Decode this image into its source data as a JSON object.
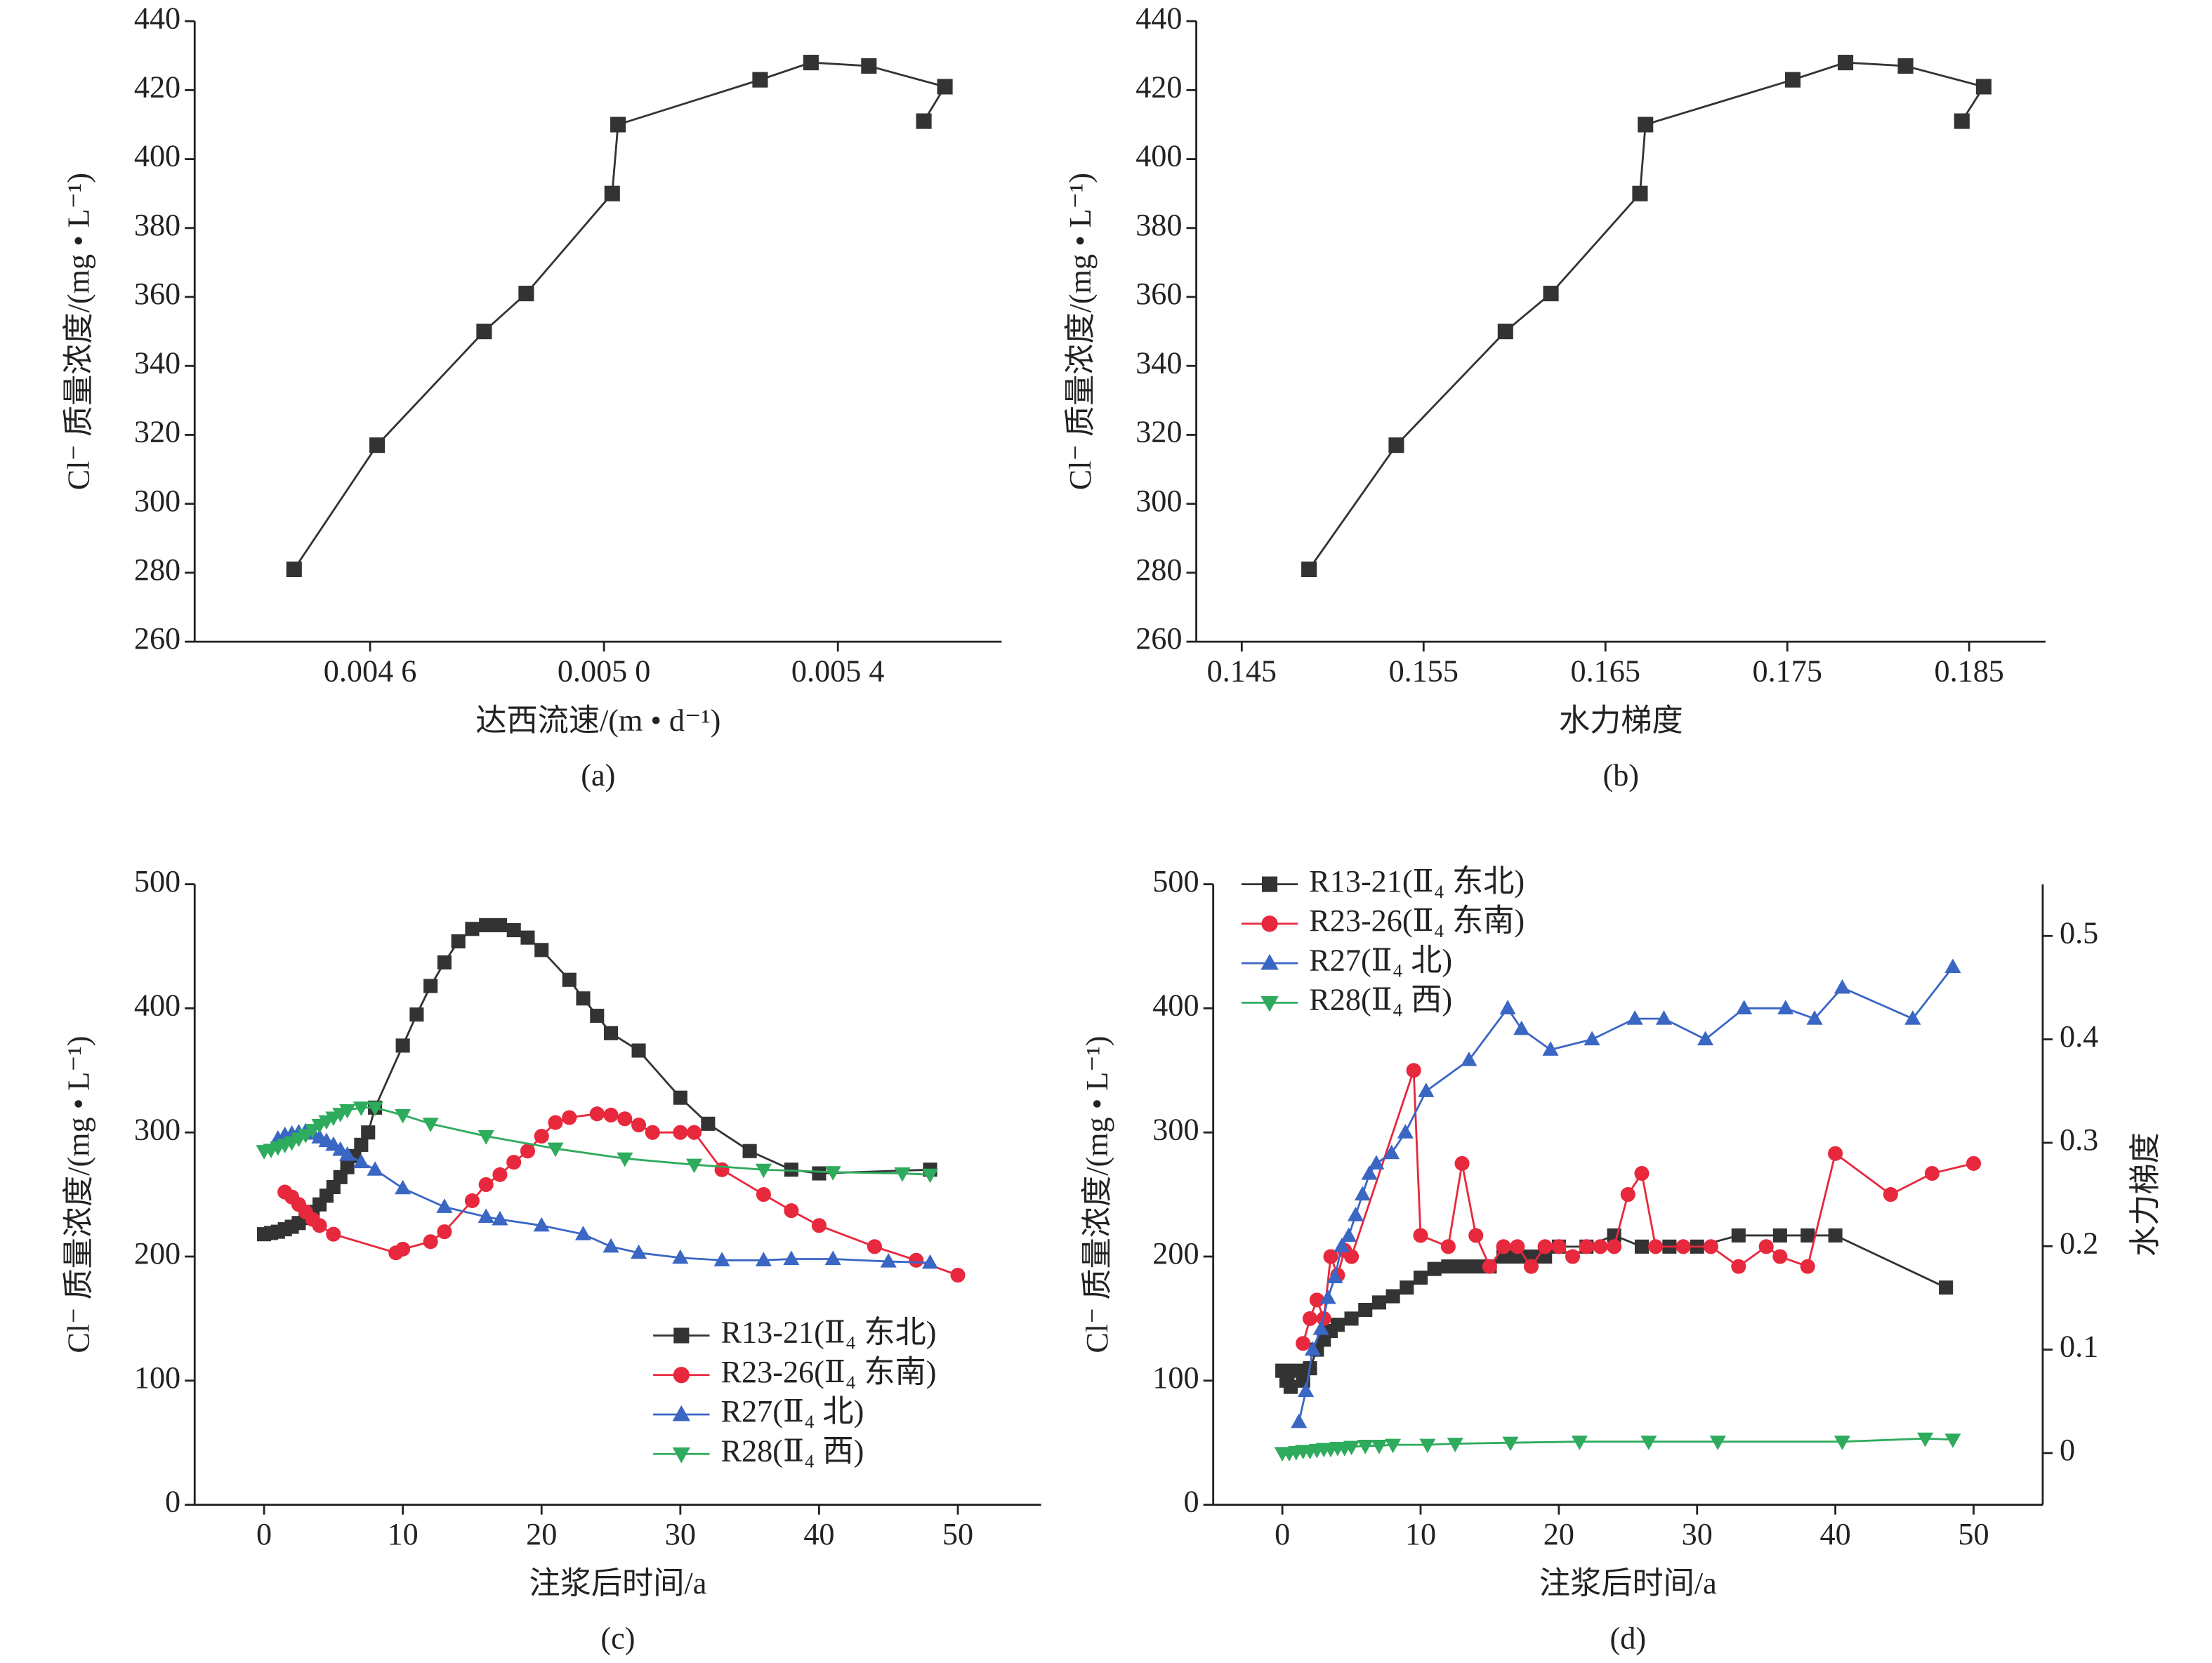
{
  "chart_data": [
    {
      "type": "line",
      "caption": "(a)",
      "x_label": "达西流速/(m • d⁻¹)",
      "y_label": "Cl⁻ 质量浓度/(mg • L⁻¹)",
      "xlim": [
        0.0043,
        0.00568
      ],
      "xticks": [
        {
          "value": 0.0046,
          "label": "0.004 6"
        },
        {
          "value": 0.005,
          "label": "0.005 0"
        },
        {
          "value": 0.0054,
          "label": "0.005 4"
        }
      ],
      "ylim": [
        260,
        440
      ],
      "yticks": [
        260,
        280,
        300,
        320,
        340,
        360,
        380,
        400,
        420,
        440
      ],
      "series": [
        {
          "color": "#333333",
          "marker": "square",
          "x": [
            0.00447,
            0.004612,
            0.004795,
            0.004867,
            0.005014,
            0.005024,
            0.005267,
            0.005354,
            0.005453,
            0.005583,
            0.005547
          ],
          "values": [
            281,
            317,
            350,
            361,
            390,
            410,
            423,
            428,
            427,
            421,
            411
          ]
        }
      ]
    },
    {
      "type": "line",
      "caption": "(b)",
      "x_label": "水力梯度",
      "y_label": "Cl⁻ 质量浓度/(mg • L⁻¹)",
      "xlim": [
        0.1425,
        0.1892
      ],
      "xticks": [
        0.145,
        0.155,
        0.165,
        0.175,
        0.185
      ],
      "ylim": [
        260,
        440
      ],
      "yticks": [
        260,
        280,
        300,
        320,
        340,
        360,
        380,
        400,
        420,
        440
      ],
      "series": [
        {
          "color": "#333333",
          "marker": "square",
          "x": [
            0.1487,
            0.1535,
            0.1595,
            0.162,
            0.1669,
            0.1672,
            0.1753,
            0.1782,
            0.1815,
            0.1858,
            0.1846
          ],
          "values": [
            281,
            317,
            350,
            361,
            390,
            410,
            423,
            428,
            427,
            421,
            411
          ]
        }
      ]
    },
    {
      "type": "line",
      "caption": "(c)",
      "x_label": "注浆后时间/a",
      "y_label": "Cl⁻ 质量浓度/(mg • L⁻¹)",
      "xlim": [
        -5,
        56
      ],
      "xticks": [
        0,
        10,
        20,
        30,
        40,
        50
      ],
      "ylim": [
        0,
        500
      ],
      "yticks": [
        0,
        100,
        200,
        300,
        400,
        500
      ],
      "legend": "lower right",
      "series": [
        {
          "name": "R13-21(Ⅱ₄ 东北)",
          "color": "#333333",
          "marker": "square",
          "x": [
            0,
            0.5,
            1,
            1.5,
            2,
            2.5,
            3,
            3.5,
            4,
            4.5,
            5,
            5.5,
            6,
            6.5,
            7,
            7.5,
            8,
            10,
            11,
            12,
            13,
            14,
            15,
            16,
            17,
            18,
            19,
            20,
            22,
            23,
            24,
            25,
            27,
            30,
            32,
            35,
            38,
            40,
            48
          ],
          "values": [
            218,
            219,
            220,
            222,
            224,
            227,
            231,
            236,
            242,
            249,
            256,
            264,
            272,
            281,
            290,
            300,
            320,
            370,
            395,
            418,
            437,
            454,
            464,
            467,
            467,
            463,
            457,
            447,
            423,
            408,
            394,
            380,
            366,
            328,
            307,
            285,
            270,
            267,
            270
          ]
        },
        {
          "name": "R23-26(Ⅱ₄ 东南)",
          "color": "#e8283c",
          "marker": "circle",
          "x": [
            1.5,
            2,
            2.5,
            3,
            3.5,
            4,
            5,
            9.5,
            10,
            12,
            13,
            15,
            16,
            17,
            18,
            19,
            20,
            21,
            22,
            24,
            25,
            26,
            27,
            28,
            30,
            31,
            33,
            36,
            38,
            40,
            44,
            47,
            50
          ],
          "values": [
            252,
            248,
            242,
            236,
            230,
            225,
            218,
            203,
            206,
            212,
            220,
            245,
            258,
            266,
            276,
            285,
            297,
            308,
            312,
            315,
            314,
            311,
            306,
            300,
            300,
            300,
            270,
            250,
            237,
            225,
            208,
            197,
            185
          ]
        },
        {
          "name": "R27(Ⅱ₄ 北)",
          "color": "#3a66c4",
          "marker": "triangle-up",
          "x": [
            1,
            1.5,
            2,
            2.5,
            3,
            3.5,
            4,
            4.5,
            5,
            5.5,
            6,
            7,
            8,
            10,
            13,
            16,
            17,
            20,
            23,
            25,
            27,
            30,
            33,
            36,
            38,
            41,
            45,
            48
          ],
          "values": [
            295,
            298,
            299,
            300,
            301,
            299,
            296,
            293,
            290,
            286,
            282,
            276,
            270,
            255,
            240,
            232,
            230,
            225,
            218,
            208,
            203,
            199,
            197,
            197,
            198,
            198,
            196,
            195
          ]
        },
        {
          "name": "R28(Ⅱ₄ 西)",
          "color": "#2eab5c",
          "marker": "triangle-down",
          "x": [
            0,
            0.5,
            1,
            1.5,
            2,
            2.5,
            3,
            3.5,
            4,
            4.5,
            5,
            5.5,
            6,
            7,
            8,
            10,
            12,
            16,
            21,
            26,
            31,
            36,
            41,
            46,
            48
          ],
          "values": [
            285,
            286,
            288,
            290,
            292,
            295,
            298,
            302,
            306,
            309,
            312,
            315,
            318,
            320,
            320,
            314,
            307,
            297,
            287,
            279,
            274,
            270,
            268,
            267,
            266
          ]
        }
      ]
    },
    {
      "type": "line",
      "caption": "(d)",
      "x_label": "注浆后时间/a",
      "y_label": "Cl⁻ 质量浓度/(mg • L⁻¹)",
      "y2_label": "水力梯度",
      "xlim": [
        -5,
        55
      ],
      "xticks": [
        0,
        10,
        20,
        30,
        40,
        50
      ],
      "ylim": [
        0,
        500
      ],
      "yticks": [
        0,
        100,
        200,
        300,
        400,
        500
      ],
      "y2lim": [
        -0.05,
        0.55
      ],
      "y2ticks": [
        0,
        0.1,
        0.2,
        0.3,
        0.4,
        0.5
      ],
      "legend": "upper left",
      "series": [
        {
          "name": "R13-21(Ⅱ₄ 东北)",
          "color": "#333333",
          "marker": "square",
          "x": [
            0,
            0.3,
            0.6,
            1,
            1.5,
            2,
            2.5,
            3,
            3.5,
            4,
            5,
            6,
            7,
            8,
            9,
            10,
            11,
            12,
            13,
            14,
            15,
            16,
            17,
            18,
            19,
            20,
            22,
            24,
            26,
            28,
            30,
            33,
            36,
            38,
            40,
            48
          ],
          "values": [
            108,
            100,
            95,
            108,
            100,
            110,
            125,
            133,
            140,
            145,
            150,
            157,
            163,
            168,
            175,
            183,
            190,
            192,
            192,
            192,
            192,
            200,
            200,
            200,
            200,
            208,
            208,
            217,
            208,
            208,
            208,
            217,
            217,
            217,
            217,
            175
          ]
        },
        {
          "name": "R23-26(Ⅱ₄ 东南)",
          "color": "#e8283c",
          "marker": "circle",
          "x": [
            1.5,
            2,
            2.5,
            3,
            3.5,
            4,
            4.5,
            5,
            9.5,
            10,
            12,
            13,
            14,
            15,
            16,
            17,
            18,
            19,
            20,
            21,
            22,
            23,
            24,
            25,
            26,
            27,
            29,
            31,
            33,
            35,
            36,
            38,
            40,
            44,
            47,
            50
          ],
          "values": [
            130,
            150,
            165,
            150,
            200,
            185,
            205,
            200,
            350,
            217,
            208,
            275,
            217,
            192,
            208,
            208,
            192,
            208,
            208,
            200,
            208,
            208,
            208,
            250,
            267,
            208,
            208,
            208,
            192,
            208,
            200,
            192,
            283,
            250,
            267,
            275
          ]
        },
        {
          "name": "R27(Ⅱ₄ 北)",
          "color": "#3a66c4",
          "marker": "triangle-up",
          "axis": "y2",
          "x": [
            1.2,
            1.7,
            2.2,
            2.8,
            3.3,
            3.8,
            4.3,
            4.8,
            5.3,
            5.8,
            6.3,
            6.8,
            7.9,
            8.9,
            10.4,
            13.5,
            16.3,
            17.3,
            19.4,
            22.4,
            25.5,
            27.6,
            30.6,
            33.4,
            36.4,
            38.5,
            40.5,
            45.6,
            48.5
          ],
          "values": [
            0.03,
            0.06,
            0.1,
            0.12,
            0.15,
            0.17,
            0.2,
            0.21,
            0.23,
            0.25,
            0.27,
            0.28,
            0.29,
            0.31,
            0.35,
            0.38,
            0.43,
            0.41,
            0.39,
            0.4,
            0.42,
            0.42,
            0.4,
            0.43,
            0.43,
            0.42,
            0.45,
            0.42,
            0.47
          ]
        },
        {
          "name": "R28(Ⅱ₄ 西)",
          "color": "#2eab5c",
          "marker": "triangle-down",
          "axis": "y2",
          "x": [
            0,
            0.5,
            1,
            1.5,
            2,
            2.5,
            3,
            3.5,
            4,
            4.5,
            5,
            6,
            7,
            8,
            10.5,
            12.5,
            16.5,
            21.5,
            26.5,
            31.5,
            40.5,
            46.5,
            48.5
          ],
          "values": [
            0,
            0,
            0.001,
            0.002,
            0.002,
            0.003,
            0.004,
            0.004,
            0.005,
            0.005,
            0.006,
            0.007,
            0.007,
            0.008,
            0.008,
            0.009,
            0.01,
            0.011,
            0.011,
            0.011,
            0.011,
            0.014,
            0.013
          ]
        }
      ]
    }
  ]
}
